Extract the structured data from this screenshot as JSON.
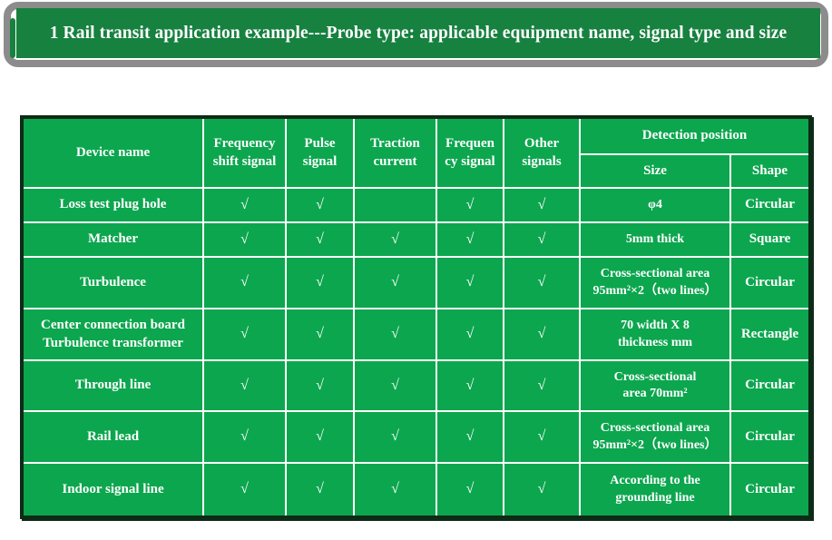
{
  "banner": {
    "title": "1 Rail transit application example---Probe type: applicable equipment name, signal type and size"
  },
  "colors": {
    "banner_green": "#17813F",
    "table_green": "#0CA64E",
    "table_border_dark": "#0D2B16",
    "grid_line": "#FFFFFF",
    "banner_outline_gray": "#8C8C8C",
    "text": "#FFFFFF"
  },
  "table": {
    "header": {
      "device": "Device name",
      "signals": [
        "Frequency\nshift signal",
        "Pulse\nsignal",
        "Traction\ncurrent",
        "Frequen\ncy signal",
        "Other\nsignals"
      ],
      "detection": "Detection position",
      "size": "Size",
      "shape": "Shape"
    },
    "check_mark": "√",
    "rows": [
      {
        "device": "Loss test plug hole",
        "checks": [
          "√",
          "√",
          "",
          "√",
          "√"
        ],
        "size": "φ4",
        "shape": "Circular"
      },
      {
        "device": "Matcher",
        "checks": [
          "√",
          "√",
          "√",
          "√",
          "√"
        ],
        "size": "5mm thick",
        "shape": "Square"
      },
      {
        "device": "Turbulence",
        "checks": [
          "√",
          "√",
          "√",
          "√",
          "√"
        ],
        "size": "Cross-sectional area\n95mm²×2（two lines）",
        "shape": "Circular"
      },
      {
        "device": "Center connection board\nTurbulence transformer",
        "checks": [
          "√",
          "√",
          "√",
          "√",
          "√"
        ],
        "size": "70 width X 8\nthickness mm",
        "shape": "Rectangle"
      },
      {
        "device": "Through line",
        "checks": [
          "√",
          "√",
          "√",
          "√",
          "√"
        ],
        "size": "Cross-sectional\narea 70mm²",
        "shape": "Circular"
      },
      {
        "device": "Rail lead",
        "checks": [
          "√",
          "√",
          "√",
          "√",
          "√"
        ],
        "size": "Cross-sectional area\n95mm²×2（two lines）",
        "shape": "Circular"
      },
      {
        "device": "Indoor signal line",
        "checks": [
          "√",
          "√",
          "√",
          "√",
          "√"
        ],
        "size": "According to the\ngrounding line",
        "shape": "Circular"
      }
    ]
  }
}
